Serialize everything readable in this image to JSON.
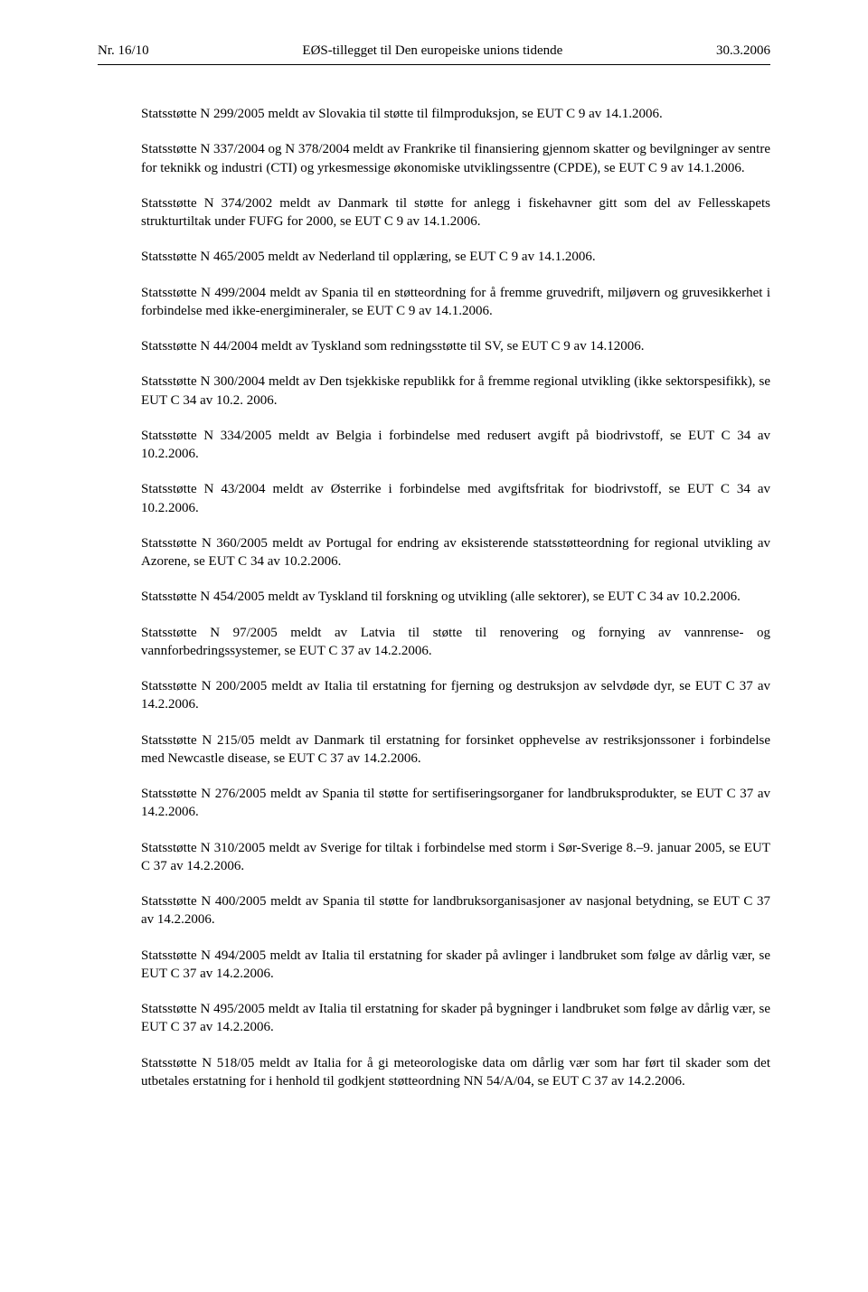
{
  "header": {
    "left": "Nr. 16/10",
    "center": "EØS-tillegget til Den europeiske unions tidende",
    "right": "30.3.2006"
  },
  "paragraphs": [
    "Statsstøtte N 299/2005 meldt av Slovakia til støtte til filmproduksjon, se EUT C 9 av 14.1.2006.",
    "Statsstøtte N 337/2004 og N 378/2004 meldt av Frankrike til finansiering gjennom skatter og bevilgninger av sentre for teknikk og industri (CTI) og yrkesmessige økonomiske utviklingssentre (CPDE), se EUT C 9 av 14.1.2006.",
    "Statsstøtte N 374/2002 meldt av Danmark til støtte for anlegg i fiskehavner gitt som del av Fellesskapets strukturtiltak under FUFG for 2000, se EUT C 9 av 14.1.2006.",
    "Statsstøtte N 465/2005 meldt av Nederland til opplæring, se EUT C 9 av 14.1.2006.",
    "Statsstøtte N 499/2004 meldt av Spania til en støtteordning for å fremme gruvedrift, miljøvern og gruvesikkerhet i forbindelse med ikke-energimineraler, se EUT C 9 av 14.1.2006.",
    "Statsstøtte N 44/2004 meldt av Tyskland som redningsstøtte til SV, se EUT C 9 av 14.12006.",
    "Statsstøtte N 300/2004 meldt av Den tsjekkiske republikk for å fremme regional utvikling (ikke sektorspesifikk), se EUT C 34 av 10.2. 2006.",
    "Statsstøtte N 334/2005 meldt av Belgia i forbindelse med redusert avgift på biodrivstoff, se EUT C 34 av 10.2.2006.",
    "Statsstøtte N 43/2004 meldt av Østerrike i forbindelse med avgiftsfritak for biodrivstoff, se EUT C 34 av 10.2.2006.",
    "Statsstøtte N 360/2005 meldt av Portugal for endring av eksisterende statsstøtteordning for regional utvikling av Azorene, se EUT C 34 av 10.2.2006.",
    "Statsstøtte N 454/2005 meldt av Tyskland til forskning og utvikling (alle sektorer), se EUT C 34 av 10.2.2006.",
    "Statsstøtte N 97/2005 meldt av Latvia til støtte til renovering og fornying av vannrense- og vannforbedringssystemer, se EUT C 37 av 14.2.2006.",
    "Statsstøtte N 200/2005 meldt av Italia til erstatning for fjerning og destruksjon av selvdøde dyr, se EUT C 37 av 14.2.2006.",
    "Statsstøtte N 215/05 meldt av Danmark til erstatning for forsinket opphevelse av restriksjonssoner i forbindelse med Newcastle disease, se EUT C 37 av 14.2.2006.",
    "Statsstøtte N 276/2005 meldt av Spania til støtte for sertifiseringsorganer for landbruksprodukter, se EUT C 37 av 14.2.2006.",
    "Statsstøtte N 310/2005 meldt av Sverige for tiltak i forbindelse med storm i Sør-Sverige 8.–9. januar 2005, se EUT C 37 av 14.2.2006.",
    "Statsstøtte N 400/2005 meldt av Spania til støtte for landbruksorganisasjoner av nasjonal betydning, se EUT C 37 av 14.2.2006.",
    "Statsstøtte N 494/2005 meldt av Italia til erstatning for skader på avlinger i landbruket som følge av dårlig vær, se EUT C 37 av 14.2.2006.",
    "Statsstøtte N 495/2005 meldt av Italia til erstatning for skader på bygninger i landbruket som følge av dårlig vær, se EUT C 37 av 14.2.2006.",
    "Statsstøtte N 518/05 meldt av Italia for å gi meteorologiske data om dårlig vær som har ført til skader som det utbetales erstatning for i henhold til godkjent støtteordning NN 54/A/04, se EUT C 37 av 14.2.2006."
  ]
}
